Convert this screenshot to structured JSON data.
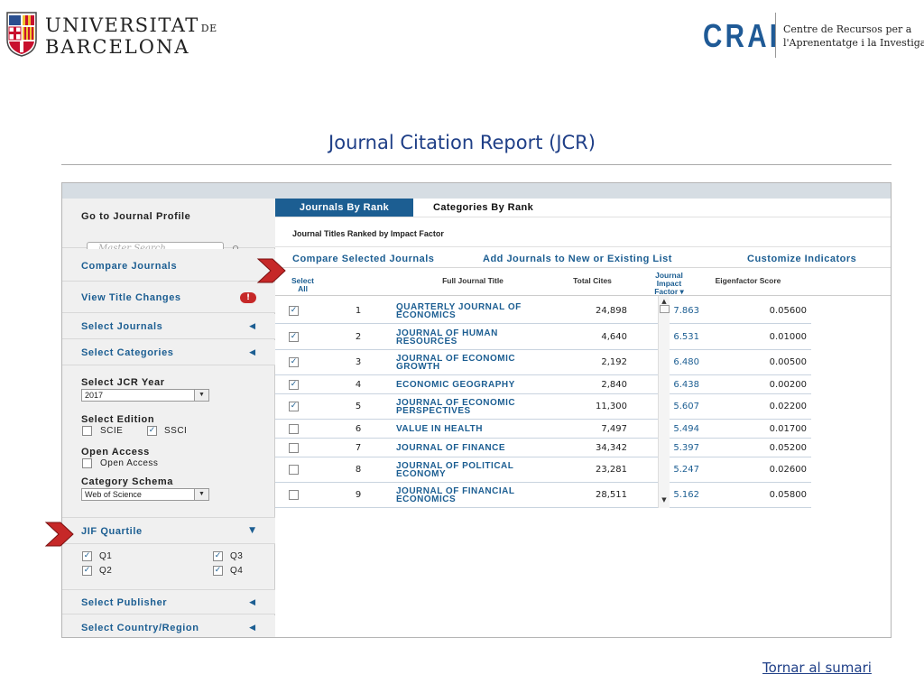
{
  "header": {
    "ub_name_line1": "UNIVERSITAT",
    "ub_name_de": "DE",
    "ub_name_line2": "BARCELONA",
    "crai_word": "CRAI",
    "crai_sub1": "Centre de Recursos per a",
    "crai_sub2": "l'Aprenentatge i la Investigació",
    "page_title": "Journal Citation Report (JCR)"
  },
  "sidebar": {
    "go_profile": "Go to Journal Profile",
    "search_placeholder": "Master Search",
    "compare": "Compare Journals",
    "title_changes": "View Title Changes",
    "select_journals": "Select Journals",
    "select_categories": "Select Categories",
    "jcr_year_label": "Select JCR Year",
    "jcr_year_value": "2017",
    "edition_label": "Select Edition",
    "edition_scie": "SCIE",
    "edition_ssci": "SSCI",
    "open_access_label": "Open Access",
    "open_access_option": "Open Access",
    "category_schema_label": "Category Schema",
    "category_schema_value": "Web of Science",
    "jif_quartile": "JIF Quartile",
    "q1": "Q1",
    "q2": "Q2",
    "q3": "Q3",
    "q4": "Q4",
    "select_publisher": "Select Publisher",
    "select_country": "Select Country/Region"
  },
  "main": {
    "tab_rank": "Journals By Rank",
    "tab_categories": "Categories By Rank",
    "caption": "Journal Titles Ranked by Impact Factor",
    "action_compare": "Compare Selected Journals",
    "action_add": "Add Journals to New or Existing List",
    "action_customize": "Customize Indicators",
    "columns": {
      "select_all_1": "Select",
      "select_all_2": "All",
      "title": "Full Journal Title",
      "cites": "Total Cites",
      "jif_1": "Journal",
      "jif_2": "Impact",
      "jif_3": "Factor ▾",
      "eigen": "Eigenfactor Score"
    },
    "rows": [
      {
        "rank": "1",
        "title": "QUARTERLY JOURNAL OF ECONOMICS",
        "cites": "24,898",
        "jif": "7.863",
        "eigen": "0.05600",
        "checked": true
      },
      {
        "rank": "2",
        "title": "JOURNAL OF HUMAN RESOURCES",
        "cites": "4,640",
        "jif": "6.531",
        "eigen": "0.01000",
        "checked": true
      },
      {
        "rank": "3",
        "title": "JOURNAL OF ECONOMIC GROWTH",
        "cites": "2,192",
        "jif": "6.480",
        "eigen": "0.00500",
        "checked": true
      },
      {
        "rank": "4",
        "title": "ECONOMIC GEOGRAPHY",
        "cites": "2,840",
        "jif": "6.438",
        "eigen": "0.00200",
        "checked": true
      },
      {
        "rank": "5",
        "title": "JOURNAL OF ECONOMIC PERSPECTIVES",
        "cites": "11,300",
        "jif": "5.607",
        "eigen": "0.02200",
        "checked": true
      },
      {
        "rank": "6",
        "title": "VALUE IN HEALTH",
        "cites": "7,497",
        "jif": "5.494",
        "eigen": "0.01700",
        "checked": false
      },
      {
        "rank": "7",
        "title": "JOURNAL OF FINANCE",
        "cites": "34,342",
        "jif": "5.397",
        "eigen": "0.05200",
        "checked": false
      },
      {
        "rank": "8",
        "title": "JOURNAL OF POLITICAL ECONOMY",
        "cites": "23,281",
        "jif": "5.247",
        "eigen": "0.02600",
        "checked": false
      },
      {
        "rank": "9",
        "title": "JOURNAL OF FINANCIAL ECONOMICS",
        "cites": "28,511",
        "jif": "5.162",
        "eigen": "0.05800",
        "checked": false
      }
    ]
  },
  "footer": {
    "tornar": "Tornar al sumari"
  },
  "colors": {
    "accent": "#1c5e92",
    "title_blue": "#1f3f87",
    "crai_blue": "#1f5a96",
    "arrow_red": "#c62828",
    "topbar": "#d6dde3"
  }
}
